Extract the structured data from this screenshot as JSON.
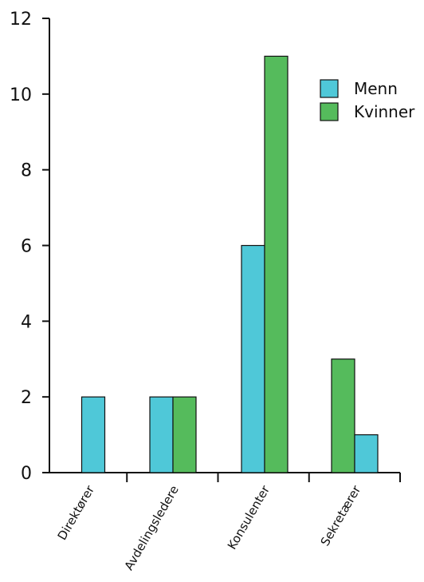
{
  "chart_data": {
    "type": "bar",
    "categories": [
      "Direktører",
      "Avdelingsledere",
      "Konsulenter",
      "Sekretærer"
    ],
    "series": [
      {
        "name": "Menn",
        "color": "#4FC8D8",
        "values": [
          2,
          2,
          6,
          1
        ]
      },
      {
        "name": "Kvinner",
        "color": "#55BB5C",
        "values": [
          0,
          2,
          11,
          3
        ]
      }
    ],
    "bar_order": [
      [
        "Menn"
      ],
      [
        "Menn",
        "Kvinner"
      ],
      [
        "Menn",
        "Kvinner"
      ],
      [
        "Kvinner",
        "Menn"
      ]
    ],
    "ylim": [
      0,
      12
    ],
    "yticks": [
      0,
      2,
      4,
      6,
      8,
      10,
      12
    ],
    "title": "",
    "xlabel": "",
    "ylabel": "",
    "grid": false,
    "legend_position": "top-right"
  }
}
